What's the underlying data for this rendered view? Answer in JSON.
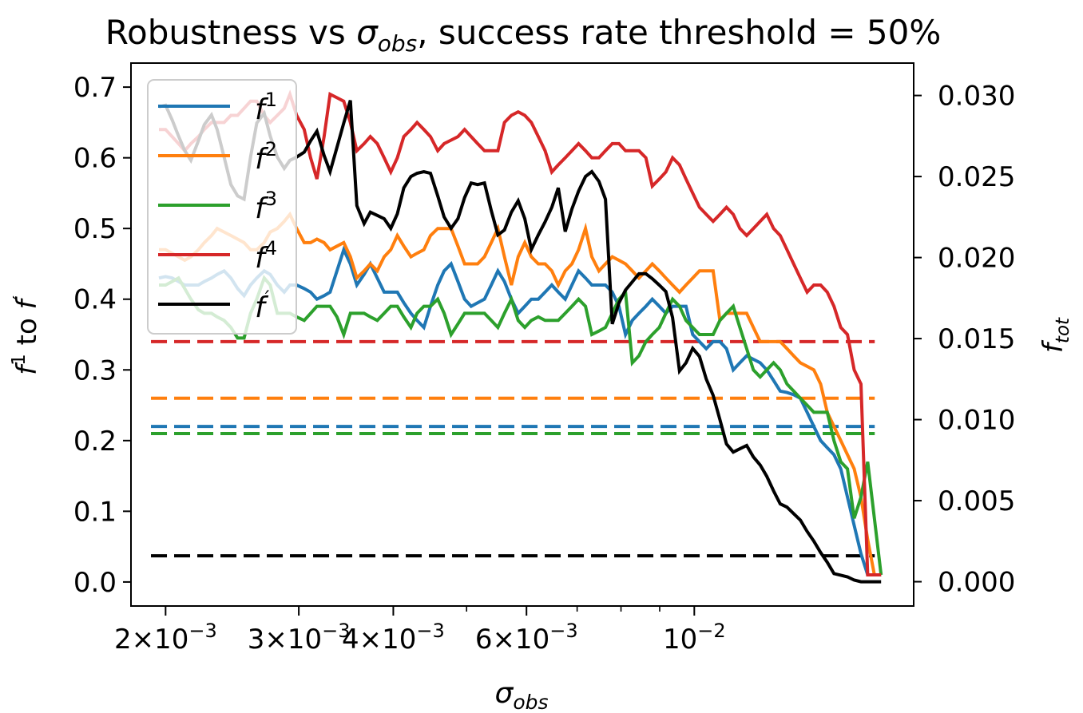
{
  "chart_data": {
    "type": "line",
    "title": {
      "pre": "Robustness vs ",
      "sym": "σ",
      "sub": "obs",
      "post": ", success rate threshold = 50%"
    },
    "xlabel": {
      "sym": "σ",
      "sub": "obs"
    },
    "ylabel_left": {
      "f": "f",
      "sup": "1",
      "mid": " to ",
      "f2": "f",
      "prime": "′"
    },
    "ylabel_right": {
      "f": "f",
      "sub": "tot"
    },
    "x_scale": "log",
    "xlim": [
      0.0018,
      0.0195
    ],
    "ylim_left": [
      -0.034,
      0.734
    ],
    "ylim_right": [
      -0.0015,
      0.032
    ],
    "x_ticks": [
      {
        "value": 0.002,
        "mant": "2",
        "exp": "−3"
      },
      {
        "value": 0.003,
        "mant": "3",
        "exp": "−3"
      },
      {
        "value": 0.004,
        "mant": "4",
        "exp": "−3"
      },
      {
        "value": 0.006,
        "mant": "6",
        "exp": "−3"
      },
      {
        "value": 0.01,
        "mant": "",
        "exp": "−2"
      }
    ],
    "x_minor_ticks": [
      0.005,
      0.007,
      0.008,
      0.009
    ],
    "left_ticks": [
      "0.0",
      "0.1",
      "0.2",
      "0.3",
      "0.4",
      "0.5",
      "0.6",
      "0.7"
    ],
    "right_ticks": [
      "0.000",
      "0.005",
      "0.010",
      "0.015",
      "0.020",
      "0.025",
      "0.030"
    ],
    "legend": {
      "position": "upper left",
      "entries": [
        {
          "base": "f",
          "sup": "1",
          "color": "#1f77b4"
        },
        {
          "base": "f",
          "sup": "2",
          "color": "#ff7f0e"
        },
        {
          "base": "f",
          "sup": "3",
          "color": "#2ca02c"
        },
        {
          "base": "f",
          "sup": "4",
          "color": "#d62728"
        },
        {
          "base": "f",
          "sup": "′",
          "color": "#000000"
        }
      ]
    },
    "x": [
      0.00196,
      0.002,
      0.00204,
      0.00208,
      0.00212,
      0.00216,
      0.00221,
      0.00225,
      0.0023,
      0.00234,
      0.00239,
      0.00244,
      0.00249,
      0.00254,
      0.00259,
      0.00264,
      0.0027,
      0.00275,
      0.00281,
      0.00287,
      0.00292,
      0.00298,
      0.00305,
      0.00311,
      0.00317,
      0.00324,
      0.0033,
      0.00337,
      0.00344,
      0.00351,
      0.00358,
      0.00366,
      0.00373,
      0.00381,
      0.00389,
      0.00397,
      0.00405,
      0.00413,
      0.00422,
      0.0043,
      0.00439,
      0.00448,
      0.00458,
      0.00467,
      0.00477,
      0.00487,
      0.00497,
      0.00507,
      0.00517,
      0.00528,
      0.00539,
      0.0055,
      0.00561,
      0.00573,
      0.00585,
      0.00597,
      0.00609,
      0.00622,
      0.00635,
      0.00648,
      0.00661,
      0.00675,
      0.00689,
      0.00703,
      0.00718,
      0.00732,
      0.00748,
      0.00763,
      0.00779,
      0.00795,
      0.00811,
      0.00828,
      0.00845,
      0.00863,
      0.0088,
      0.00899,
      0.00917,
      0.00936,
      0.00956,
      0.00975,
      0.00995,
      0.01016,
      0.01037,
      0.01059,
      0.01081,
      0.01103,
      0.01126,
      0.01149,
      0.01173,
      0.01197,
      0.01222,
      0.01247,
      0.01273,
      0.01299,
      0.01326,
      0.01353,
      0.01381,
      0.0141,
      0.01439,
      0.01469,
      0.01499,
      0.0153,
      0.01562,
      0.01594,
      0.01627,
      0.01661,
      0.01695,
      0.0173,
      0.01766
    ],
    "series": [
      {
        "name": "f1",
        "axis": "left",
        "color": "#1f77b4",
        "values": [
          0.43,
          0.432,
          0.43,
          0.425,
          0.42,
          0.42,
          0.42,
          0.425,
          0.43,
          0.435,
          0.44,
          0.43,
          0.415,
          0.405,
          0.42,
          0.43,
          0.44,
          0.435,
          0.42,
          0.41,
          0.42,
          0.42,
          0.415,
          0.41,
          0.4,
          0.405,
          0.41,
          0.44,
          0.47,
          0.45,
          0.42,
          0.435,
          0.45,
          0.43,
          0.41,
          0.41,
          0.41,
          0.395,
          0.38,
          0.37,
          0.36,
          0.39,
          0.42,
          0.44,
          0.45,
          0.425,
          0.4,
          0.39,
          0.395,
          0.4,
          0.42,
          0.44,
          0.425,
          0.4,
          0.38,
          0.39,
          0.4,
          0.4,
          0.41,
          0.42,
          0.41,
          0.4,
          0.42,
          0.44,
          0.43,
          0.42,
          0.42,
          0.42,
          0.41,
          0.39,
          0.35,
          0.37,
          0.38,
          0.39,
          0.4,
          0.39,
          0.38,
          0.39,
          0.39,
          0.39,
          0.35,
          0.34,
          0.33,
          0.34,
          0.34,
          0.33,
          0.3,
          0.31,
          0.32,
          0.315,
          0.31,
          0.3,
          0.285,
          0.27,
          0.268,
          0.265,
          0.26,
          0.24,
          0.22,
          0.2,
          0.19,
          0.18,
          0.16,
          0.12,
          0.08,
          0.04,
          0.01,
          0.01,
          0.01
        ]
      },
      {
        "name": "f2",
        "axis": "left",
        "color": "#ff7f0e",
        "values": [
          0.47,
          0.47,
          0.465,
          0.46,
          0.455,
          0.46,
          0.47,
          0.48,
          0.49,
          0.5,
          0.495,
          0.49,
          0.485,
          0.48,
          0.47,
          0.47,
          0.48,
          0.495,
          0.5,
          0.51,
          0.52,
          0.5,
          0.48,
          0.48,
          0.485,
          0.48,
          0.47,
          0.475,
          0.48,
          0.46,
          0.43,
          0.44,
          0.45,
          0.44,
          0.46,
          0.47,
          0.49,
          0.475,
          0.46,
          0.465,
          0.47,
          0.49,
          0.5,
          0.5,
          0.5,
          0.475,
          0.45,
          0.45,
          0.45,
          0.46,
          0.48,
          0.5,
          0.46,
          0.42,
          0.46,
          0.48,
          0.46,
          0.45,
          0.45,
          0.44,
          0.42,
          0.44,
          0.45,
          0.47,
          0.5,
          0.46,
          0.44,
          0.45,
          0.46,
          0.455,
          0.45,
          0.44,
          0.43,
          0.44,
          0.45,
          0.44,
          0.43,
          0.42,
          0.41,
          0.42,
          0.43,
          0.44,
          0.44,
          0.44,
          0.37,
          0.38,
          0.38,
          0.38,
          0.38,
          0.36,
          0.34,
          0.34,
          0.34,
          0.34,
          0.33,
          0.32,
          0.31,
          0.305,
          0.3,
          0.28,
          0.24,
          0.22,
          0.2,
          0.18,
          0.16,
          0.12,
          0.06,
          0.01,
          0.01
        ]
      },
      {
        "name": "f3",
        "axis": "left",
        "color": "#2ca02c",
        "values": [
          0.42,
          0.42,
          0.425,
          0.43,
          0.415,
          0.4,
          0.385,
          0.38,
          0.38,
          0.375,
          0.37,
          0.36,
          0.345,
          0.345,
          0.38,
          0.4,
          0.43,
          0.42,
          0.38,
          0.38,
          0.38,
          0.375,
          0.37,
          0.38,
          0.39,
          0.39,
          0.39,
          0.375,
          0.35,
          0.38,
          0.38,
          0.38,
          0.375,
          0.37,
          0.38,
          0.39,
          0.39,
          0.375,
          0.36,
          0.38,
          0.39,
          0.39,
          0.4,
          0.38,
          0.35,
          0.365,
          0.38,
          0.38,
          0.38,
          0.38,
          0.37,
          0.36,
          0.38,
          0.4,
          0.37,
          0.36,
          0.37,
          0.375,
          0.37,
          0.37,
          0.37,
          0.38,
          0.39,
          0.4,
          0.39,
          0.35,
          0.355,
          0.36,
          0.38,
          0.4,
          0.41,
          0.31,
          0.32,
          0.34,
          0.35,
          0.36,
          0.38,
          0.4,
          0.39,
          0.37,
          0.36,
          0.35,
          0.35,
          0.35,
          0.37,
          0.38,
          0.39,
          0.36,
          0.33,
          0.3,
          0.29,
          0.3,
          0.31,
          0.3,
          0.28,
          0.27,
          0.26,
          0.25,
          0.24,
          0.24,
          0.24,
          0.2,
          0.17,
          0.16,
          0.09,
          0.12,
          0.17,
          0.09,
          0.01
        ]
      },
      {
        "name": "f4",
        "axis": "left",
        "color": "#d62728",
        "values": [
          0.64,
          0.64,
          0.63,
          0.62,
          0.61,
          0.62,
          0.63,
          0.64,
          0.65,
          0.65,
          0.65,
          0.66,
          0.66,
          0.67,
          0.68,
          0.68,
          0.66,
          0.65,
          0.66,
          0.67,
          0.69,
          0.66,
          0.64,
          0.6,
          0.57,
          0.63,
          0.69,
          0.685,
          0.68,
          0.65,
          0.61,
          0.62,
          0.63,
          0.62,
          0.6,
          0.58,
          0.6,
          0.63,
          0.64,
          0.65,
          0.64,
          0.63,
          0.61,
          0.62,
          0.625,
          0.63,
          0.64,
          0.63,
          0.62,
          0.61,
          0.61,
          0.61,
          0.65,
          0.66,
          0.665,
          0.66,
          0.65,
          0.63,
          0.61,
          0.58,
          0.59,
          0.6,
          0.61,
          0.62,
          0.61,
          0.6,
          0.6,
          0.61,
          0.62,
          0.62,
          0.61,
          0.61,
          0.61,
          0.6,
          0.56,
          0.57,
          0.58,
          0.6,
          0.59,
          0.57,
          0.55,
          0.53,
          0.52,
          0.51,
          0.52,
          0.53,
          0.52,
          0.5,
          0.49,
          0.5,
          0.51,
          0.52,
          0.5,
          0.49,
          0.47,
          0.45,
          0.43,
          0.41,
          0.42,
          0.42,
          0.41,
          0.39,
          0.36,
          0.35,
          0.3,
          0.28,
          0.01,
          0.01,
          0.01
        ]
      },
      {
        "name": "fprime",
        "axis": "right",
        "color": "#000000",
        "values": [
          0.0293,
          0.0294,
          0.0285,
          0.0275,
          0.0266,
          0.026,
          0.0272,
          0.0282,
          0.0288,
          0.0279,
          0.0262,
          0.0245,
          0.0238,
          0.0236,
          0.0262,
          0.0283,
          0.0289,
          0.0275,
          0.0262,
          0.0255,
          0.026,
          0.0262,
          0.0265,
          0.0272,
          0.0278,
          0.0263,
          0.0253,
          0.0268,
          0.0283,
          0.0297,
          0.0232,
          0.0221,
          0.0228,
          0.0226,
          0.0224,
          0.0218,
          0.0227,
          0.0243,
          0.025,
          0.0252,
          0.0253,
          0.0252,
          0.0238,
          0.0225,
          0.0218,
          0.0224,
          0.0237,
          0.0246,
          0.0245,
          0.0246,
          0.0229,
          0.0214,
          0.0217,
          0.0228,
          0.0235,
          0.0224,
          0.0205,
          0.0214,
          0.0222,
          0.0231,
          0.0243,
          0.0216,
          0.023,
          0.0241,
          0.025,
          0.0253,
          0.0247,
          0.0236,
          0.0159,
          0.0172,
          0.018,
          0.0185,
          0.019,
          0.019,
          0.0187,
          0.0183,
          0.0179,
          0.0163,
          0.013,
          0.0135,
          0.0144,
          0.0139,
          0.0125,
          0.0115,
          0.01,
          0.0085,
          0.008,
          0.0082,
          0.0084,
          0.0077,
          0.0072,
          0.0065,
          0.0056,
          0.0048,
          0.0046,
          0.0042,
          0.0038,
          0.0031,
          0.0025,
          0.0018,
          0.0012,
          0.0005,
          0.0004,
          0.0003,
          0.0001,
          0.0,
          0.0,
          0.0,
          0.0
        ]
      }
    ],
    "baselines": [
      {
        "name": "f4 baseline",
        "axis": "left",
        "value": 0.34,
        "color": "#d62728"
      },
      {
        "name": "f2 baseline",
        "axis": "left",
        "value": 0.26,
        "color": "#ff7f0e"
      },
      {
        "name": "f1 baseline",
        "axis": "left",
        "value": 0.22,
        "color": "#1f77b4"
      },
      {
        "name": "f3 baseline",
        "axis": "left",
        "value": 0.21,
        "color": "#2ca02c"
      },
      {
        "name": "fprime baseline",
        "axis": "right",
        "value": 0.0016,
        "color": "#000000"
      }
    ]
  }
}
